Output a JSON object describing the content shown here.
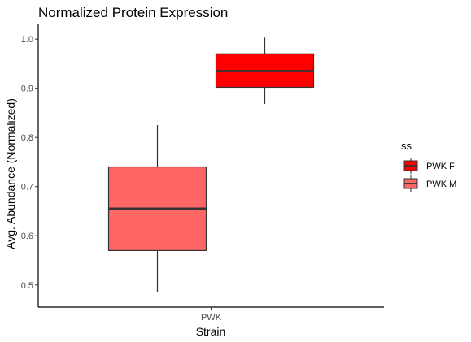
{
  "chart_data": {
    "type": "boxplot",
    "title": "Normalized Protein Expression",
    "xlabel": "Strain",
    "ylabel": "Avg. Abundance (Normalized)",
    "categories": [
      "PWK"
    ],
    "ylim": [
      0.455,
      1.03
    ],
    "yticks": [
      0.5,
      0.6,
      0.7,
      0.8,
      0.9,
      1.0
    ],
    "ytick_labels": [
      "0.5",
      "0.6",
      "0.7",
      "0.8",
      "0.9",
      "1.0"
    ],
    "grid": false,
    "legend": {
      "title": "ss",
      "placement": "right",
      "entries": [
        "PWK F",
        "PWK M"
      ]
    },
    "series": [
      {
        "name": "PWK F",
        "color": "#ff0000",
        "category": "PWK",
        "dodge": "right",
        "min": 0.868,
        "q1": 0.902,
        "median": 0.935,
        "q3": 0.97,
        "max": 1.003
      },
      {
        "name": "PWK M",
        "color": "#ff6666",
        "category": "PWK",
        "dodge": "left",
        "min": 0.485,
        "q1": 0.57,
        "median": 0.655,
        "q3": 0.74,
        "max": 0.825
      }
    ]
  }
}
